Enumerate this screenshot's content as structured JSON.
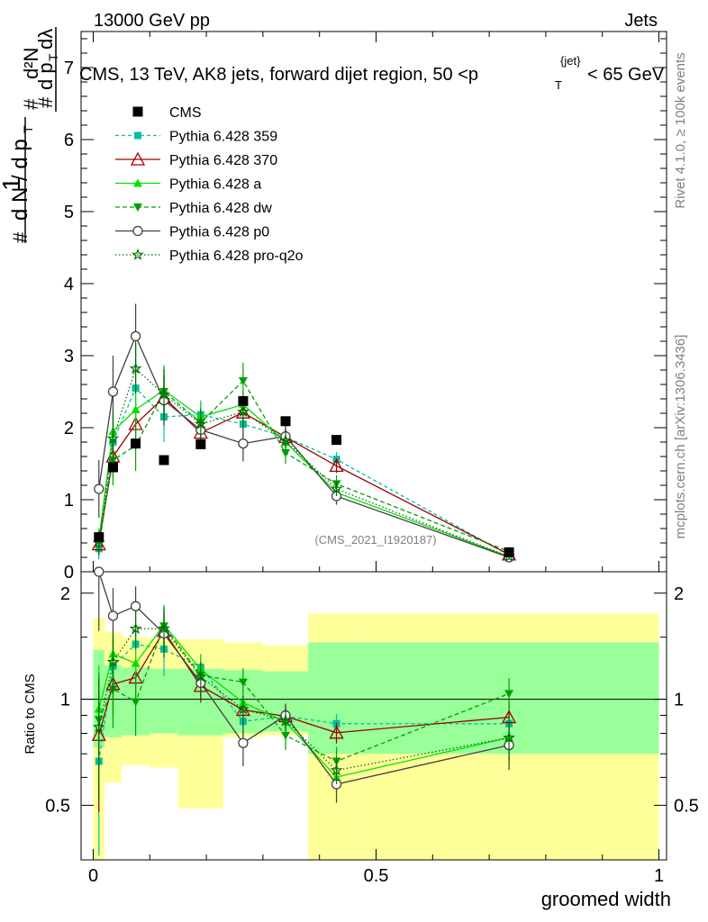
{
  "header": {
    "left": "13000 GeV pp",
    "right": "Jets"
  },
  "side": {
    "rivet": "Rivet 4.1.0, ≥ 100k events",
    "mcplots": "mcplots.cern.ch [arXiv:1306.3436]"
  },
  "chart_data": {
    "type": "line",
    "title": "CMS, 13 TeV, AK8 jets, forward dijet region, 50 <p_T^{jet}< 65 GeV",
    "title_main": "CMS, 13 TeV, AK8 jets, forward dijet region, 50 <p",
    "title_sup": "{jet}",
    "title_sub": "T",
    "title_tail": "< 65 GeV",
    "watermark": "(CMS_2021_I1920187)",
    "xlabel": "groomed width",
    "ylabel_main": "1/dN/dp_T #d²N/#dp_T dλ",
    "ylabel_ratio": "Ratio to CMS",
    "xlim": [
      0,
      1
    ],
    "ylim_main": [
      0,
      7.5
    ],
    "ylim_ratio": [
      0.35,
      2.3
    ],
    "x_ticks": [
      {
        "v": 0,
        "label": "0"
      },
      {
        "v": 0.5,
        "label": "0.5"
      },
      {
        "v": 1,
        "label": "1"
      }
    ],
    "y_ticks_main": [
      {
        "v": 0,
        "label": "0"
      },
      {
        "v": 1,
        "label": "1"
      },
      {
        "v": 2,
        "label": "2"
      },
      {
        "v": 3,
        "label": "3"
      },
      {
        "v": 4,
        "label": "4"
      },
      {
        "v": 5,
        "label": "5"
      },
      {
        "v": 6,
        "label": "6"
      },
      {
        "v": 7,
        "label": "7"
      }
    ],
    "y_ticks_ratio": [
      {
        "v": 0.5,
        "label": "0.5"
      },
      {
        "v": 1,
        "label": "1"
      },
      {
        "v": 2,
        "label": "2"
      }
    ],
    "bins": [
      0,
      0.02,
      0.05,
      0.1,
      0.15,
      0.23,
      0.3,
      0.38,
      0.48,
      1.0
    ],
    "data": {
      "name": "CMS",
      "x": [
        0.01,
        0.035,
        0.075,
        0.125,
        0.19,
        0.265,
        0.34,
        0.43,
        0.735
      ],
      "y": [
        0.48,
        1.45,
        1.78,
        1.55,
        1.77,
        2.37,
        2.09,
        1.83,
        0.27
      ]
    },
    "band_ratio": {
      "inner_lo": [
        0.73,
        0.78,
        0.79,
        0.8,
        0.79,
        0.8,
        0.81,
        0.7,
        0.7
      ],
      "inner_hi": [
        1.38,
        1.25,
        1.23,
        1.22,
        1.22,
        1.21,
        1.2,
        1.45,
        1.45
      ],
      "outer_lo": [
        0.35,
        0.58,
        0.65,
        0.64,
        0.49,
        0.78,
        0.79,
        0.35,
        0.35
      ],
      "outer_hi": [
        1.7,
        1.55,
        1.5,
        1.48,
        1.48,
        1.45,
        1.42,
        1.75,
        1.75
      ]
    },
    "series": [
      {
        "name": "Pythia 6.428 359",
        "color": "#00bfa0",
        "dash": "4,3",
        "marker": "square",
        "x": [
          0.01,
          0.035,
          0.075,
          0.125,
          0.19,
          0.265,
          0.34,
          0.43,
          0.735
        ],
        "y": [
          0.32,
          1.8,
          2.55,
          2.15,
          2.18,
          2.05,
          1.87,
          1.56,
          0.23
        ],
        "err": [
          0.15,
          0.35,
          0.35,
          0.35,
          0.2,
          0.2,
          0.15,
          0.1,
          0.03
        ]
      },
      {
        "name": "Pythia 6.428 370",
        "color": "#a00000",
        "dash": "",
        "marker": "triangle-open",
        "x": [
          0.01,
          0.035,
          0.075,
          0.125,
          0.19,
          0.265,
          0.34,
          0.43,
          0.735
        ],
        "y": [
          0.38,
          1.6,
          2.05,
          2.42,
          1.93,
          2.21,
          1.87,
          1.47,
          0.24
        ],
        "err": [
          0.15,
          0.3,
          0.3,
          0.3,
          0.2,
          0.2,
          0.12,
          0.1,
          0.03
        ]
      },
      {
        "name": "Pythia 6.428 a",
        "color": "#00e000",
        "dash": "",
        "marker": "triangle",
        "x": [
          0.01,
          0.035,
          0.075,
          0.125,
          0.19,
          0.265,
          0.34,
          0.43,
          0.735
        ],
        "y": [
          0.45,
          1.95,
          2.25,
          2.52,
          2.15,
          2.32,
          1.8,
          1.1,
          0.21
        ],
        "err": [
          0.15,
          0.35,
          0.35,
          0.35,
          0.2,
          0.2,
          0.12,
          0.1,
          0.03
        ]
      },
      {
        "name": "Pythia 6.428 dw",
        "color": "#00a000",
        "dash": "5,3",
        "marker": "triangle-down",
        "x": [
          0.01,
          0.035,
          0.075,
          0.125,
          0.19,
          0.265,
          0.34,
          0.43,
          0.735
        ],
        "y": [
          0.42,
          1.55,
          1.75,
          2.5,
          2.07,
          2.65,
          1.65,
          1.22,
          0.28
        ],
        "err": [
          0.15,
          0.35,
          0.35,
          0.35,
          0.2,
          0.25,
          0.15,
          0.12,
          0.03
        ]
      },
      {
        "name": "Pythia 6.428 p0",
        "color": "#404040",
        "dash": "",
        "marker": "circle-open",
        "x": [
          0.01,
          0.035,
          0.075,
          0.125,
          0.19,
          0.265,
          0.34,
          0.43,
          0.735
        ],
        "y": [
          1.15,
          2.5,
          3.27,
          2.38,
          1.97,
          1.78,
          1.88,
          1.05,
          0.2
        ],
        "err": [
          0.4,
          0.5,
          0.45,
          0.35,
          0.2,
          0.25,
          0.15,
          0.12,
          0.03
        ]
      },
      {
        "name": "Pythia 6.428 pro-q2o",
        "color": "#007000",
        "dash": "1.5,2.5",
        "marker": "star",
        "x": [
          0.01,
          0.035,
          0.075,
          0.125,
          0.19,
          0.265,
          0.34,
          0.43,
          0.735
        ],
        "y": [
          0.4,
          1.85,
          2.82,
          2.46,
          2.05,
          2.22,
          1.82,
          1.15,
          0.21
        ],
        "err": [
          0.15,
          0.35,
          0.35,
          0.35,
          0.2,
          0.2,
          0.12,
          0.1,
          0.03
        ]
      }
    ]
  }
}
